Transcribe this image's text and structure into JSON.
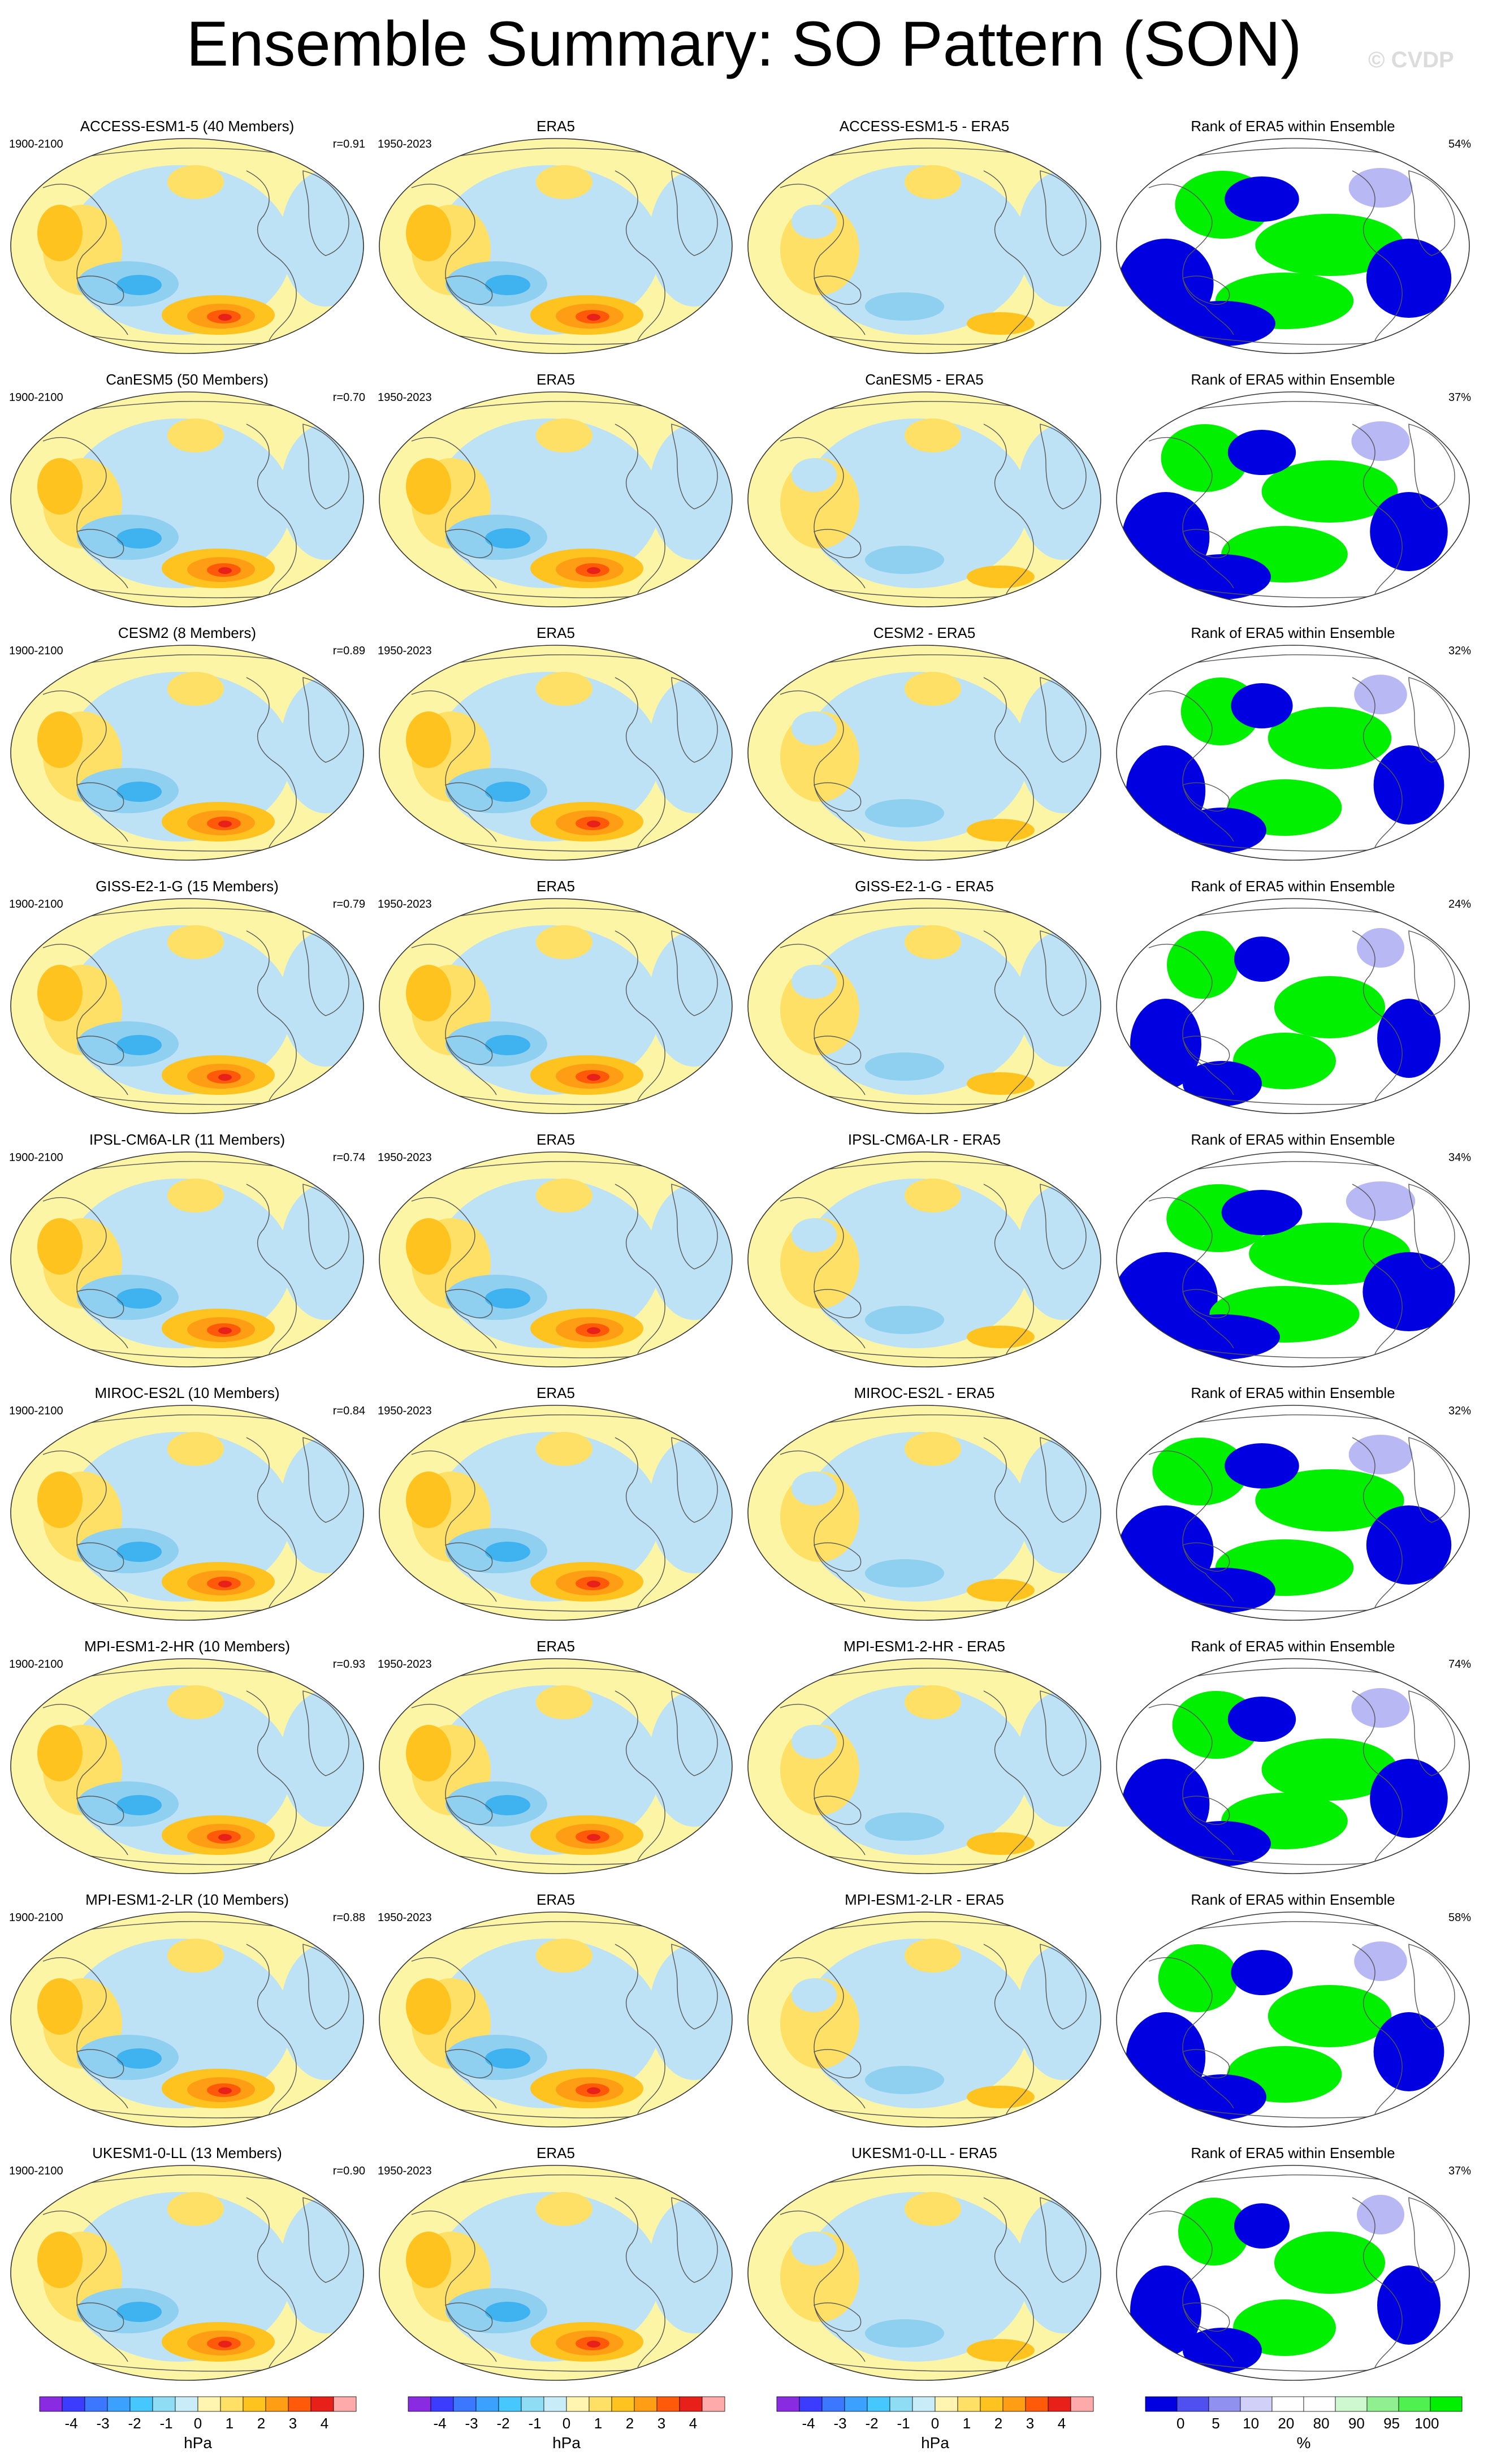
{
  "title": "Ensemble Summary: SO Pattern (SON)",
  "watermark": "© CVDP",
  "colors": {
    "land": "#fdf5a6",
    "pos1": "#ffe066",
    "pos2": "#ffc31f",
    "pos3": "#ff9e14",
    "pos4": "#ff5a0a",
    "pos5": "#e8201a",
    "neg1": "#bde2f5",
    "neg2": "#8fcff0",
    "neg3": "#3fb2f0",
    "rank_low": "#0000e0",
    "rank_high": "#00f000",
    "rank_light": "#b8b8f5"
  },
  "rows": [
    {
      "model": "ACCESS-ESM1-5 (40 Members)",
      "period": "1900-2100",
      "corr": "r=0.91",
      "diff": "ACCESS-ESM1-5 - ERA5",
      "rank_pct": "54%"
    },
    {
      "model": "CanESM5 (50 Members)",
      "period": "1900-2100",
      "corr": "r=0.70",
      "diff": "CanESM5 - ERA5",
      "rank_pct": "37%"
    },
    {
      "model": "CESM2 (8 Members)",
      "period": "1900-2100",
      "corr": "r=0.89",
      "diff": "CESM2 - ERA5",
      "rank_pct": "32%"
    },
    {
      "model": "GISS-E2-1-G (15 Members)",
      "period": "1900-2100",
      "corr": "r=0.79",
      "diff": "GISS-E2-1-G - ERA5",
      "rank_pct": "24%"
    },
    {
      "model": "IPSL-CM6A-LR (11 Members)",
      "period": "1900-2100",
      "corr": "r=0.74",
      "diff": "IPSL-CM6A-LR - ERA5",
      "rank_pct": "34%"
    },
    {
      "model": "MIROC-ES2L (10 Members)",
      "period": "1900-2100",
      "corr": "r=0.84",
      "diff": "MIROC-ES2L - ERA5",
      "rank_pct": "32%"
    },
    {
      "model": "MPI-ESM1-2-HR (10 Members)",
      "period": "1900-2100",
      "corr": "r=0.93",
      "diff": "MPI-ESM1-2-HR - ERA5",
      "rank_pct": "74%"
    },
    {
      "model": "MPI-ESM1-2-LR (10 Members)",
      "period": "1900-2100",
      "corr": "r=0.88",
      "diff": "MPI-ESM1-2-LR - ERA5",
      "rank_pct": "58%"
    },
    {
      "model": "UKESM1-0-LL (13 Members)",
      "period": "1900-2100",
      "corr": "r=0.90",
      "diff": "UKESM1-0-LL - ERA5",
      "rank_pct": "37%"
    }
  ],
  "obs": {
    "title": "ERA5",
    "period": "1950-2023"
  },
  "rank_title": "Rank of ERA5 within Ensemble",
  "colorbars": {
    "hpa": {
      "ticks": [
        "-4",
        "-3",
        "-2",
        "-1",
        "0",
        "1",
        "2",
        "3",
        "4"
      ],
      "unit": "hPa"
    },
    "rank": {
      "ticks": [
        "0",
        "5",
        "10",
        "20",
        "80",
        "90",
        "95",
        "100"
      ],
      "unit": "%"
    }
  }
}
